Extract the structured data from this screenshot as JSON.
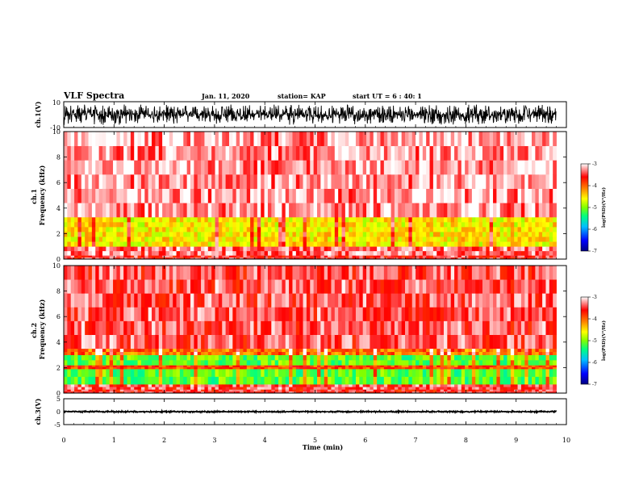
{
  "header": {
    "title": "VLF Spectra",
    "date": "Jan. 11, 2020",
    "station": "station= KAP",
    "start_ut": "start UT =  6 : 40: 1"
  },
  "chart_data": [
    {
      "type": "line",
      "name": "ch1-waveform",
      "ylabel": "ch.1(V)",
      "ylim": [
        -10,
        10
      ],
      "yticks": [
        "10",
        "-10"
      ],
      "xlim": [
        0,
        10
      ],
      "note_values": "noisy waveform oscillating roughly between -8 and 8 V over 0–9.8 min",
      "approx_range": [
        -8,
        8
      ],
      "data_end_min": 9.8
    },
    {
      "type": "heatmap",
      "name": "ch1-spectrogram",
      "ylabel": "ch.1 Frequency (kHz)",
      "ylim": [
        0,
        10
      ],
      "yticks": [
        "0",
        "2",
        "4",
        "6",
        "8",
        "10"
      ],
      "xlim": [
        0,
        10
      ],
      "data_end_min": 9.8,
      "bands": [
        {
          "from_khz": 0.0,
          "to_khz": 0.3,
          "level": -3.6
        },
        {
          "from_khz": 0.3,
          "to_khz": 1.0,
          "level": -3.4
        },
        {
          "from_khz": 1.0,
          "to_khz": 3.3,
          "level": -4.6
        },
        {
          "from_khz": 3.3,
          "to_khz": 10.0,
          "level": -3.3
        }
      ],
      "colorbar": {
        "label": "log(PSD)(V²/Hz)",
        "range": [
          -7,
          -3
        ],
        "ticks": [
          "-3",
          "-4",
          "-5",
          "-6",
          "-7"
        ],
        "colors": [
          "#000080",
          "#0000ff",
          "#00bfff",
          "#00ff80",
          "#80ff00",
          "#ffff00",
          "#ff8000",
          "#ff0000",
          "#ffffff"
        ]
      }
    },
    {
      "type": "heatmap",
      "name": "ch2-spectrogram",
      "ylabel": "ch.2 Frequency (kHz)",
      "ylim": [
        0,
        10
      ],
      "yticks": [
        "0",
        "2",
        "4",
        "6",
        "8",
        "10"
      ],
      "xlim": [
        0,
        10
      ],
      "data_end_min": 9.8,
      "bands": [
        {
          "from_khz": 0.0,
          "to_khz": 0.3,
          "level": -3.6
        },
        {
          "from_khz": 0.3,
          "to_khz": 0.7,
          "level": -3.5
        },
        {
          "from_khz": 0.7,
          "to_khz": 1.9,
          "level": -5.2
        },
        {
          "from_khz": 1.9,
          "to_khz": 2.2,
          "level": -3.9
        },
        {
          "from_khz": 2.2,
          "to_khz": 3.0,
          "level": -5.2
        },
        {
          "from_khz": 3.0,
          "to_khz": 3.5,
          "level": -4.1
        },
        {
          "from_khz": 3.5,
          "to_khz": 10.0,
          "level": -3.5
        }
      ],
      "colorbar": {
        "label": "log(PSD)(V²/Hz)",
        "range": [
          -7,
          -3
        ],
        "ticks": [
          "-3",
          "-4",
          "-5",
          "-6",
          "-7"
        ]
      }
    },
    {
      "type": "line",
      "name": "ch3-waveform",
      "ylabel": "ch.3(V)",
      "ylim": [
        -5,
        5
      ],
      "yticks": [
        "5",
        "0",
        "-5"
      ],
      "xlim": [
        0,
        10
      ],
      "note_values": "thick flat trace near 0 V",
      "approx_range": [
        -0.3,
        0.3
      ],
      "data_end_min": 9.8
    }
  ],
  "xaxis": {
    "label": "Time (min)",
    "ticks": [
      "0",
      "1",
      "2",
      "3",
      "4",
      "5",
      "6",
      "7",
      "8",
      "9",
      "10"
    ]
  }
}
